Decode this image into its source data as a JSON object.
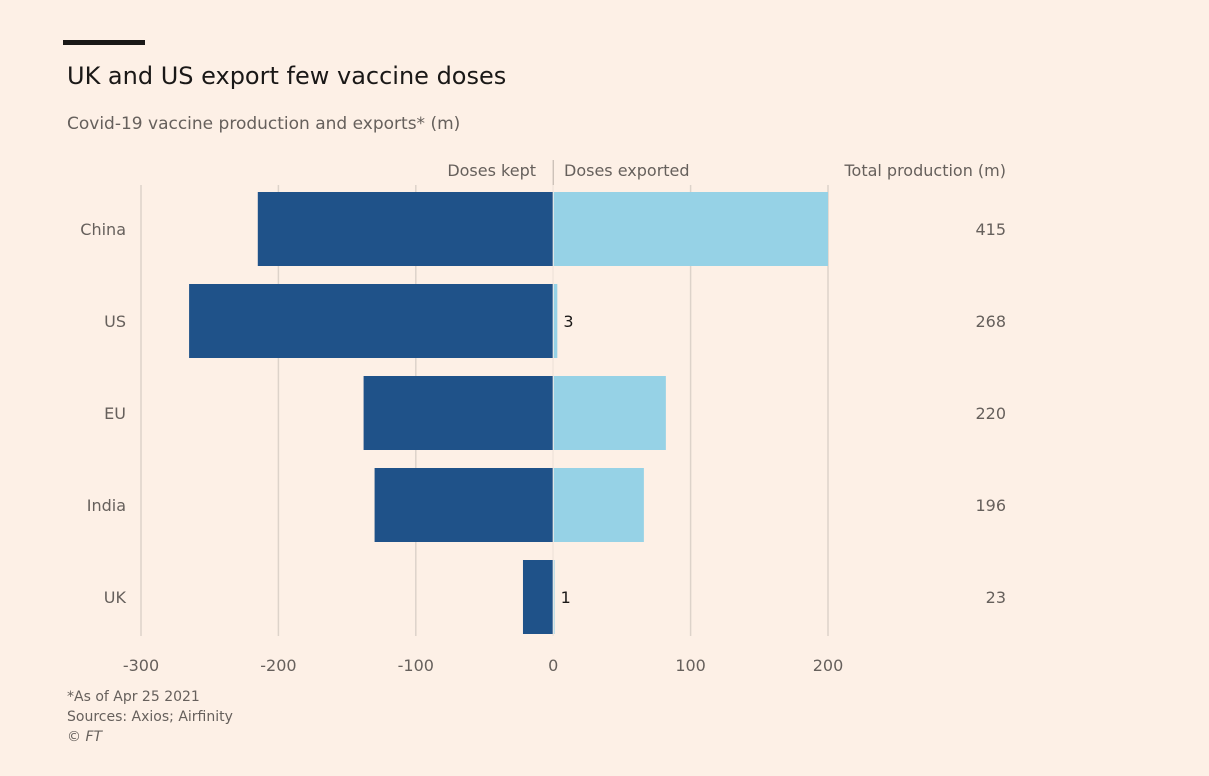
{
  "chart_data": {
    "type": "bar",
    "orientation": "horizontal-diverging",
    "title": "UK and US export few vaccine doses",
    "subtitle": "Covid-19 vaccine production and exports* (m)",
    "categories": [
      "China",
      "US",
      "EU",
      "India",
      "UK"
    ],
    "series": [
      {
        "name": "Doses kept",
        "values": [
          -215,
          -265,
          -138,
          -130,
          -22
        ],
        "color": "#1f5289"
      },
      {
        "name": "Doses exported",
        "values": [
          200,
          3,
          82,
          66,
          1
        ],
        "color": "#96d2e6"
      }
    ],
    "data_labels": {
      "US": "3",
      "UK": "1"
    },
    "total_header": "Total production (m)",
    "totals": [
      "415",
      "268",
      "220",
      "196",
      "23"
    ],
    "xlim": [
      -300,
      200
    ],
    "xticks": [
      -300,
      -200,
      -100,
      0,
      100,
      200
    ],
    "xtick_labels": [
      "-300",
      "-200",
      "-100",
      "0",
      "100",
      "200"
    ],
    "grid": true,
    "footnotes": [
      "*As of Apr 25 2021",
      "Sources: Axios; Airfinity",
      "© FT"
    ],
    "background": "#fdf0e6"
  }
}
